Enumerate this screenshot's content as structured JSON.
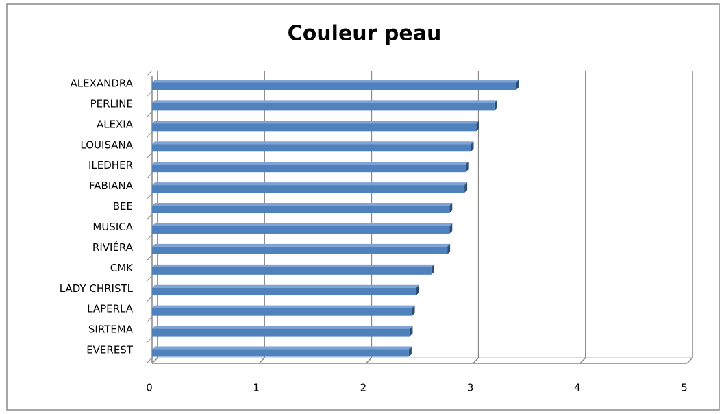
{
  "chart_data": {
    "type": "bar",
    "orientation": "horizontal",
    "title": "Couleur peau",
    "categories": [
      "ALEXANDRA",
      "PERLINE",
      "ALEXIA",
      "LOUISANA",
      "ILEDHER",
      "FABIANA",
      "BEE",
      "MUSICA",
      "RIVIÉRA",
      "CMK",
      "LADY CHRISTL",
      "LAPERLA",
      "SIRTEMA",
      "EVEREST"
    ],
    "values": [
      3.4,
      3.2,
      3.03,
      2.98,
      2.93,
      2.92,
      2.78,
      2.78,
      2.76,
      2.61,
      2.47,
      2.43,
      2.41,
      2.4
    ],
    "color": "#4f81bd",
    "xlim": [
      0,
      5
    ],
    "xticks": [
      0,
      1,
      2,
      3,
      4,
      5
    ],
    "grid": true
  }
}
